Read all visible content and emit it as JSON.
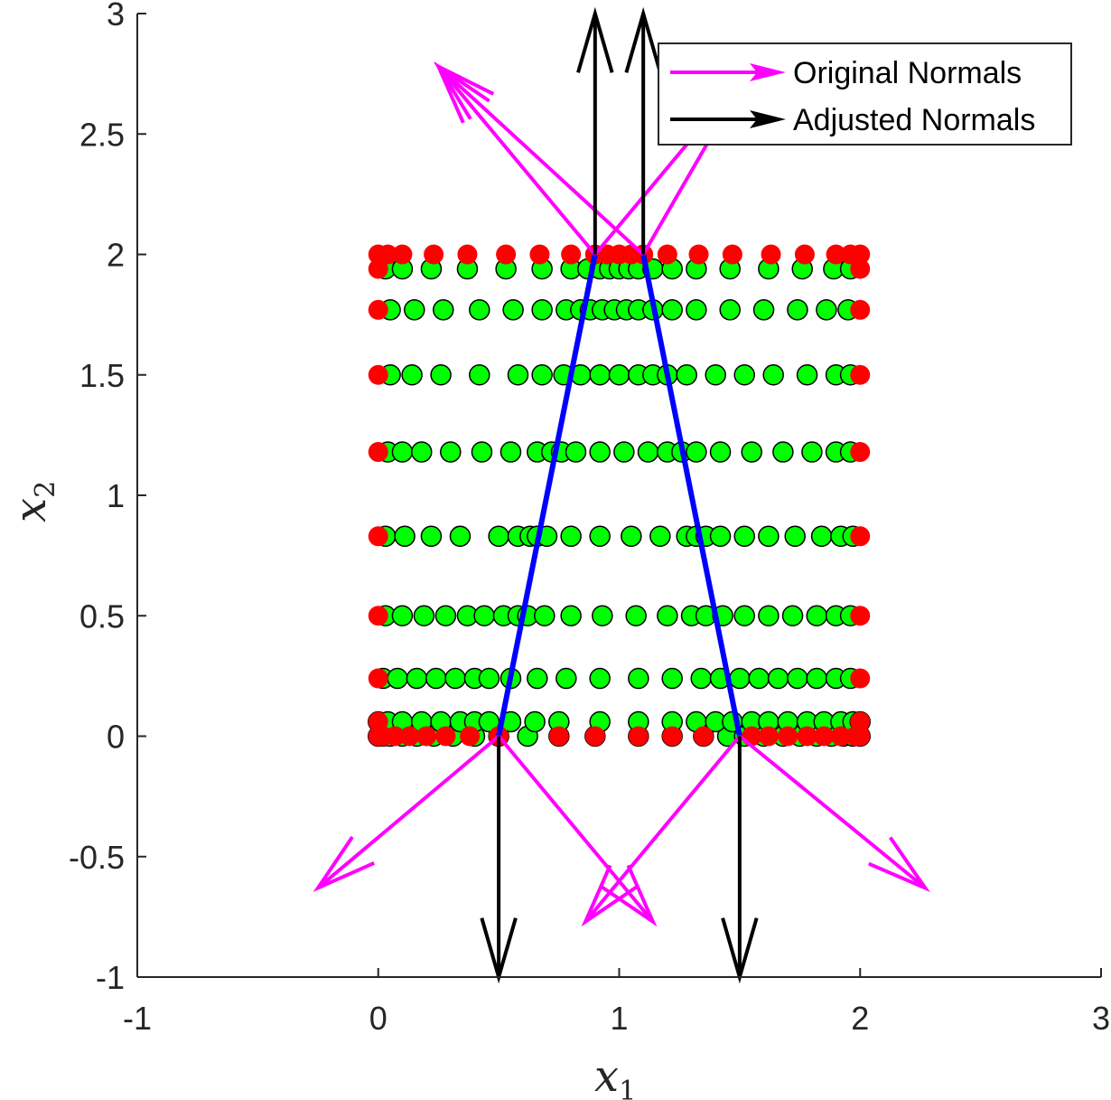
{
  "chart_data": {
    "type": "scatter",
    "xlim": [
      -1,
      3
    ],
    "ylim": [
      -1,
      3
    ],
    "xticks": [
      "-1",
      "0",
      "1",
      "2",
      "3"
    ],
    "yticks": [
      "-1",
      "-0.5",
      "0",
      "0.5",
      "1",
      "1.5",
      "2",
      "2.5",
      "3"
    ],
    "xlabel": {
      "base": "x",
      "sub": "1"
    },
    "ylabel": {
      "base": "x",
      "sub": "2"
    },
    "grid": false,
    "legend_placement": "top-right",
    "colors": {
      "interior_points": "#00ff00",
      "boundary_points": "#ff0000",
      "trapezoid_edge": "#0000ff",
      "original_normals": "#ff00ff",
      "adjusted_normals": "#000000",
      "axis": "#262626"
    },
    "legend": [
      {
        "label": "Original Normals",
        "color": "#ff00ff"
      },
      {
        "label": "Adjusted Normals",
        "color": "#000000"
      }
    ],
    "trapezoid": {
      "vertices": [
        [
          0.5,
          0
        ],
        [
          0.9,
          2
        ],
        [
          1.1,
          2
        ],
        [
          1.5,
          0
        ]
      ]
    },
    "rows": [
      {
        "y": 0.0,
        "x": [
          0,
          0.02,
          0.05,
          0.1,
          0.16,
          0.23,
          0.31,
          0.4,
          0.5,
          0.62,
          0.75,
          0.9,
          1.08,
          1.22,
          1.35,
          1.45,
          1.52,
          1.6,
          1.68,
          1.75,
          1.82,
          1.88,
          1.93,
          1.97,
          2.0
        ]
      },
      {
        "y": 0.06,
        "x": [
          0.0,
          0.04,
          0.1,
          0.18,
          0.26,
          0.34,
          0.4,
          0.46,
          0.55,
          0.65,
          0.75,
          0.92,
          1.08,
          1.22,
          1.32,
          1.4,
          1.47,
          1.55,
          1.62,
          1.7,
          1.78,
          1.85,
          1.92,
          1.97,
          2.0
        ]
      },
      {
        "y": 0.24,
        "x": [
          0.02,
          0.08,
          0.16,
          0.24,
          0.32,
          0.4,
          0.46,
          0.55,
          0.66,
          0.78,
          0.92,
          1.08,
          1.22,
          1.34,
          1.42,
          1.5,
          1.58,
          1.66,
          1.74,
          1.82,
          1.9,
          1.96
        ]
      },
      {
        "y": 0.5,
        "x": [
          0.03,
          0.1,
          0.19,
          0.28,
          0.37,
          0.44,
          0.52,
          0.58,
          0.62,
          0.69,
          0.8,
          0.93,
          1.07,
          1.2,
          1.3,
          1.36,
          1.43,
          1.52,
          1.62,
          1.72,
          1.82,
          1.9,
          1.96
        ]
      },
      {
        "y": 0.83,
        "x": [
          0.03,
          0.11,
          0.22,
          0.34,
          0.5,
          0.58,
          0.63,
          0.66,
          0.7,
          0.8,
          0.92,
          1.05,
          1.17,
          1.28,
          1.32,
          1.36,
          1.42,
          1.52,
          1.62,
          1.73,
          1.84,
          1.92,
          1.97
        ]
      },
      {
        "y": 1.18,
        "x": [
          0.04,
          0.1,
          0.18,
          0.3,
          0.43,
          0.55,
          0.66,
          0.72,
          0.76,
          0.82,
          0.92,
          1.02,
          1.12,
          1.2,
          1.26,
          1.32,
          1.42,
          1.55,
          1.68,
          1.8,
          1.9,
          1.96
        ]
      },
      {
        "y": 1.5,
        "x": [
          0.05,
          0.14,
          0.26,
          0.42,
          0.58,
          0.68,
          0.77,
          0.84,
          0.92,
          1.0,
          1.08,
          1.14,
          1.2,
          1.28,
          1.4,
          1.52,
          1.64,
          1.78,
          1.9,
          1.96
        ]
      },
      {
        "y": 1.77,
        "x": [
          0.05,
          0.15,
          0.27,
          0.42,
          0.56,
          0.68,
          0.78,
          0.84,
          0.88,
          0.93,
          0.98,
          1.03,
          1.08,
          1.14,
          1.22,
          1.32,
          1.46,
          1.6,
          1.74,
          1.86,
          1.95
        ]
      },
      {
        "y": 1.94,
        "x": [
          0.03,
          0.1,
          0.22,
          0.37,
          0.53,
          0.68,
          0.8,
          0.87,
          0.92,
          0.96,
          1.0,
          1.04,
          1.08,
          1.14,
          1.22,
          1.32,
          1.46,
          1.62,
          1.76,
          1.89,
          1.96
        ]
      }
    ],
    "boundary_points": {
      "top": {
        "y": 2.0,
        "x": [
          0,
          0.04,
          0.1,
          0.23,
          0.37,
          0.53,
          0.67,
          0.8,
          0.9,
          0.95,
          1.0,
          1.05,
          1.1,
          1.2,
          1.33,
          1.47,
          1.63,
          1.77,
          1.9,
          1.96,
          2.0
        ]
      },
      "bottom": {
        "y": 0.0,
        "x": [
          0,
          0.02,
          0.07,
          0.13,
          0.2,
          0.28,
          0.38,
          0.5,
          0.75,
          0.9,
          1.08,
          1.22,
          1.35,
          1.55,
          1.62,
          1.7,
          1.78,
          1.85,
          1.92,
          1.98,
          2.0
        ]
      },
      "left": {
        "x": 0.0,
        "y": [
          0.06,
          0.24,
          0.5,
          0.83,
          1.18,
          1.5,
          1.77,
          1.94
        ]
      },
      "right": {
        "x": 2.0,
        "y": [
          0.06,
          0.24,
          0.5,
          0.83,
          1.18,
          1.5,
          1.77,
          1.94
        ]
      }
    },
    "original_normals": [
      {
        "from": [
          0.9,
          2
        ],
        "to": [
          0.25,
          2.78
        ]
      },
      {
        "from": [
          1.1,
          2
        ],
        "to": [
          0.25,
          2.78
        ]
      },
      {
        "from": [
          0.9,
          2
        ],
        "to": [
          1.55,
          2.78
        ]
      },
      {
        "from": [
          1.1,
          2
        ],
        "to": [
          1.55,
          2.78
        ]
      },
      {
        "from": [
          0.5,
          0
        ],
        "to": [
          -0.25,
          -0.63
        ]
      },
      {
        "from": [
          0.5,
          0
        ],
        "to": [
          1.14,
          -0.77
        ]
      },
      {
        "from": [
          1.5,
          0
        ],
        "to": [
          0.86,
          -0.77
        ]
      },
      {
        "from": [
          1.5,
          0
        ],
        "to": [
          2.27,
          -0.63
        ]
      }
    ],
    "adjusted_normals": [
      {
        "from": [
          0.9,
          2
        ],
        "to": [
          0.9,
          3
        ]
      },
      {
        "from": [
          1.1,
          2
        ],
        "to": [
          1.1,
          3
        ]
      },
      {
        "from": [
          0.5,
          0
        ],
        "to": [
          0.5,
          -1
        ]
      },
      {
        "from": [
          1.5,
          0
        ],
        "to": [
          1.5,
          -1
        ]
      }
    ]
  }
}
